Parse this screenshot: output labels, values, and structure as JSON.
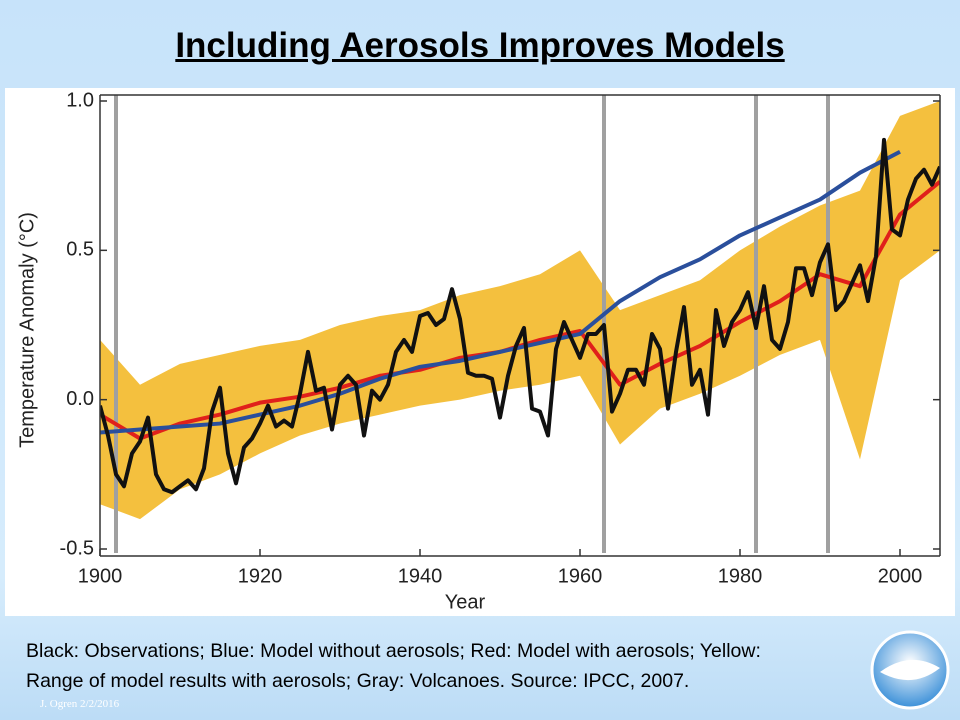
{
  "title": "Including Aerosols Improves Models",
  "chart_data": {
    "type": "line",
    "ylabel": "Temperature Anomaly (°C)",
    "xlabel": "Year",
    "xlim": [
      1900,
      2005
    ],
    "ylim": [
      -0.5,
      1.0
    ],
    "xticks": [
      1900,
      1920,
      1940,
      1960,
      1980,
      2000
    ],
    "yticks": [
      -0.5,
      {
        "value": 0,
        "label": "0.0"
      },
      0.5,
      {
        "value": 1.0,
        "label": "1.0"
      }
    ],
    "volcanoes": {
      "color": "#a0a0a0",
      "x": [
        1902,
        1963,
        1982,
        1991
      ]
    },
    "range": {
      "color": "#f2b51c",
      "x": [
        1900,
        1905,
        1910,
        1915,
        1920,
        1925,
        1930,
        1935,
        1940,
        1945,
        1950,
        1955,
        1960,
        1965,
        1970,
        1975,
        1980,
        1985,
        1990,
        1995,
        2000,
        2005
      ],
      "lower": [
        -0.35,
        -0.4,
        -0.3,
        -0.25,
        -0.18,
        -0.12,
        -0.08,
        -0.05,
        -0.02,
        0.0,
        0.03,
        0.05,
        0.08,
        -0.15,
        -0.03,
        0.02,
        0.08,
        0.15,
        0.2,
        -0.2,
        0.4,
        0.5
      ],
      "upper": [
        0.2,
        0.05,
        0.12,
        0.15,
        0.18,
        0.2,
        0.25,
        0.28,
        0.3,
        0.35,
        0.38,
        0.42,
        0.5,
        0.3,
        0.35,
        0.4,
        0.5,
        0.58,
        0.65,
        0.7,
        0.95,
        1.0
      ]
    },
    "series": [
      {
        "color": "#e0201b",
        "x": [
          1900,
          1905,
          1910,
          1915,
          1920,
          1925,
          1930,
          1935,
          1940,
          1945,
          1950,
          1955,
          1960,
          1965,
          1970,
          1975,
          1980,
          1985,
          1990,
          1995,
          2000,
          2005
        ],
        "values": [
          -0.05,
          -0.13,
          -0.08,
          -0.05,
          -0.01,
          0.01,
          0.04,
          0.08,
          0.1,
          0.14,
          0.16,
          0.2,
          0.23,
          0.05,
          0.12,
          0.18,
          0.26,
          0.33,
          0.42,
          0.38,
          0.62,
          0.73
        ]
      },
      {
        "color": "#2a4f9c",
        "x": [
          1900,
          1905,
          1910,
          1915,
          1920,
          1925,
          1930,
          1935,
          1940,
          1945,
          1950,
          1955,
          1960,
          1965,
          1970,
          1975,
          1980,
          1985,
          1990,
          1995,
          2000
        ],
        "values": [
          -0.11,
          -0.1,
          -0.09,
          -0.08,
          -0.05,
          -0.02,
          0.02,
          0.07,
          0.11,
          0.13,
          0.16,
          0.19,
          0.22,
          0.33,
          0.41,
          0.47,
          0.55,
          0.61,
          0.67,
          0.76,
          0.83
        ]
      },
      {
        "color": "#111111",
        "x": [
          1900,
          1901,
          1902,
          1903,
          1904,
          1905,
          1906,
          1907,
          1908,
          1909,
          1910,
          1911,
          1912,
          1913,
          1914,
          1915,
          1916,
          1917,
          1918,
          1919,
          1920,
          1921,
          1922,
          1923,
          1924,
          1925,
          1926,
          1927,
          1928,
          1929,
          1930,
          1931,
          1932,
          1933,
          1934,
          1935,
          1936,
          1937,
          1938,
          1939,
          1940,
          1941,
          1942,
          1943,
          1944,
          1945,
          1946,
          1947,
          1948,
          1949,
          1950,
          1951,
          1952,
          1953,
          1954,
          1955,
          1956,
          1957,
          1958,
          1959,
          1960,
          1961,
          1962,
          1963,
          1964,
          1965,
          1966,
          1967,
          1968,
          1969,
          1970,
          1971,
          1972,
          1973,
          1974,
          1975,
          1976,
          1977,
          1978,
          1979,
          1980,
          1981,
          1982,
          1983,
          1984,
          1985,
          1986,
          1987,
          1988,
          1989,
          1990,
          1991,
          1992,
          1993,
          1994,
          1995,
          1996,
          1997,
          1998,
          1999,
          2000,
          2001,
          2002,
          2003,
          2004,
          2005
        ],
        "values": [
          -0.02,
          -0.12,
          -0.25,
          -0.29,
          -0.18,
          -0.14,
          -0.06,
          -0.25,
          -0.3,
          -0.31,
          -0.29,
          -0.27,
          -0.3,
          -0.23,
          -0.04,
          0.04,
          -0.18,
          -0.28,
          -0.16,
          -0.13,
          -0.08,
          -0.02,
          -0.09,
          -0.07,
          -0.09,
          0.02,
          0.16,
          0.03,
          0.04,
          -0.1,
          0.05,
          0.08,
          0.05,
          -0.12,
          0.03,
          0.0,
          0.05,
          0.16,
          0.2,
          0.16,
          0.28,
          0.29,
          0.25,
          0.27,
          0.37,
          0.27,
          0.09,
          0.08,
          0.08,
          0.07,
          -0.06,
          0.08,
          0.18,
          0.24,
          -0.03,
          -0.04,
          -0.12,
          0.17,
          0.26,
          0.2,
          0.14,
          0.22,
          0.22,
          0.25,
          -0.04,
          0.02,
          0.1,
          0.1,
          0.05,
          0.22,
          0.17,
          -0.03,
          0.16,
          0.31,
          0.05,
          0.1,
          -0.05,
          0.3,
          0.18,
          0.26,
          0.3,
          0.36,
          0.24,
          0.38,
          0.2,
          0.17,
          0.26,
          0.44,
          0.44,
          0.35,
          0.46,
          0.52,
          0.3,
          0.33,
          0.39,
          0.45,
          0.33,
          0.48,
          0.87,
          0.57,
          0.55,
          0.67,
          0.74,
          0.77,
          0.72,
          0.78
        ]
      }
    ]
  },
  "caption": [
    "Black: Observations; Blue: Model without aerosols; Red: Model with aerosols; Yellow:",
    "Range of model results with aerosols; Gray: Volcanoes.  Source: IPCC, 2007."
  ],
  "footer": "J. Ogren  2/2/2016"
}
